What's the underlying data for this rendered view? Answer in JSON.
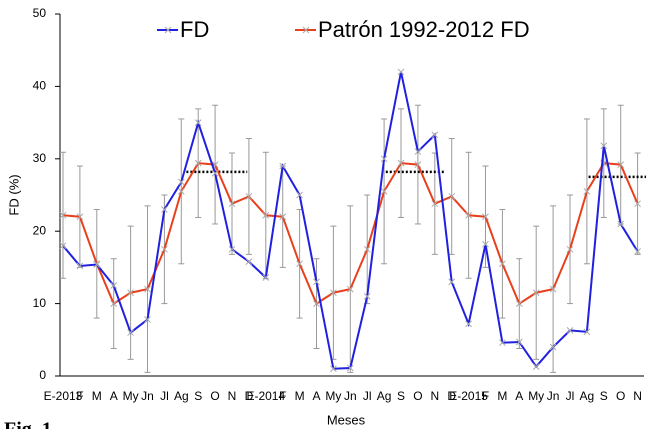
{
  "chart_data": {
    "type": "line",
    "figure_label": "Fig. 1",
    "xlabel": "Meses",
    "ylabel": "FD (%)",
    "categories": [
      "E-2013",
      "F",
      "M",
      "A",
      "My",
      "Jn",
      "Jl",
      "Ag",
      "S",
      "O",
      "N",
      "D",
      "E-2014",
      "F",
      "M",
      "A",
      "My",
      "Jn",
      "Jl",
      "Ag",
      "S",
      "O",
      "N",
      "D",
      "E-2015",
      "F",
      "M",
      "A",
      "My",
      "Jn",
      "Jl",
      "Ag",
      "S",
      "O",
      "N"
    ],
    "ylim": [
      0,
      50
    ],
    "yticks": [
      0,
      10,
      20,
      30,
      40,
      50
    ],
    "series": [
      {
        "name": "FD",
        "color": "#2020e0",
        "values": [
          18,
          15.2,
          15.4,
          12.5,
          6,
          7.8,
          23,
          26.8,
          35,
          28,
          17.5,
          15.8,
          13.6,
          29,
          25,
          13,
          1,
          1.1,
          11,
          30,
          42,
          31,
          33.3,
          13,
          7.2,
          18.2,
          4.6,
          4.7,
          1.3,
          4,
          6.3,
          6.1,
          31.8,
          21,
          17.2
        ]
      },
      {
        "name": "Patrón 1992-2012 FD",
        "color": "#e8401c",
        "values": [
          22.2,
          22,
          15.5,
          10,
          11.5,
          12,
          17.5,
          25.5,
          29.4,
          29.2,
          23.8,
          24.8,
          22.2,
          22,
          15.5,
          10,
          11.5,
          12,
          17.5,
          25.5,
          29.4,
          29.2,
          23.8,
          24.8,
          22.2,
          22,
          15.5,
          10,
          11.5,
          12,
          17.5,
          25.5,
          29.4,
          29.2,
          23.8
        ],
        "errors": [
          8.7,
          7,
          7.5,
          6.2,
          9.2,
          11.5,
          7.5,
          10,
          7.5,
          8.2,
          7,
          8,
          8.7,
          7,
          7.5,
          6.2,
          9.2,
          11.5,
          7.5,
          10,
          7.5,
          8.2,
          7,
          8,
          8.7,
          7,
          7.5,
          6.2,
          9.2,
          11.5,
          7.5,
          10,
          7.5,
          8.2,
          7
        ]
      }
    ],
    "reference_lines": [
      {
        "value": 28.2,
        "from": 7.3,
        "to": 10.9
      },
      {
        "value": 28.2,
        "from": 19.1,
        "to": 22.6
      },
      {
        "value": 27.5,
        "from": 31.1,
        "to": 34.5
      }
    ]
  }
}
